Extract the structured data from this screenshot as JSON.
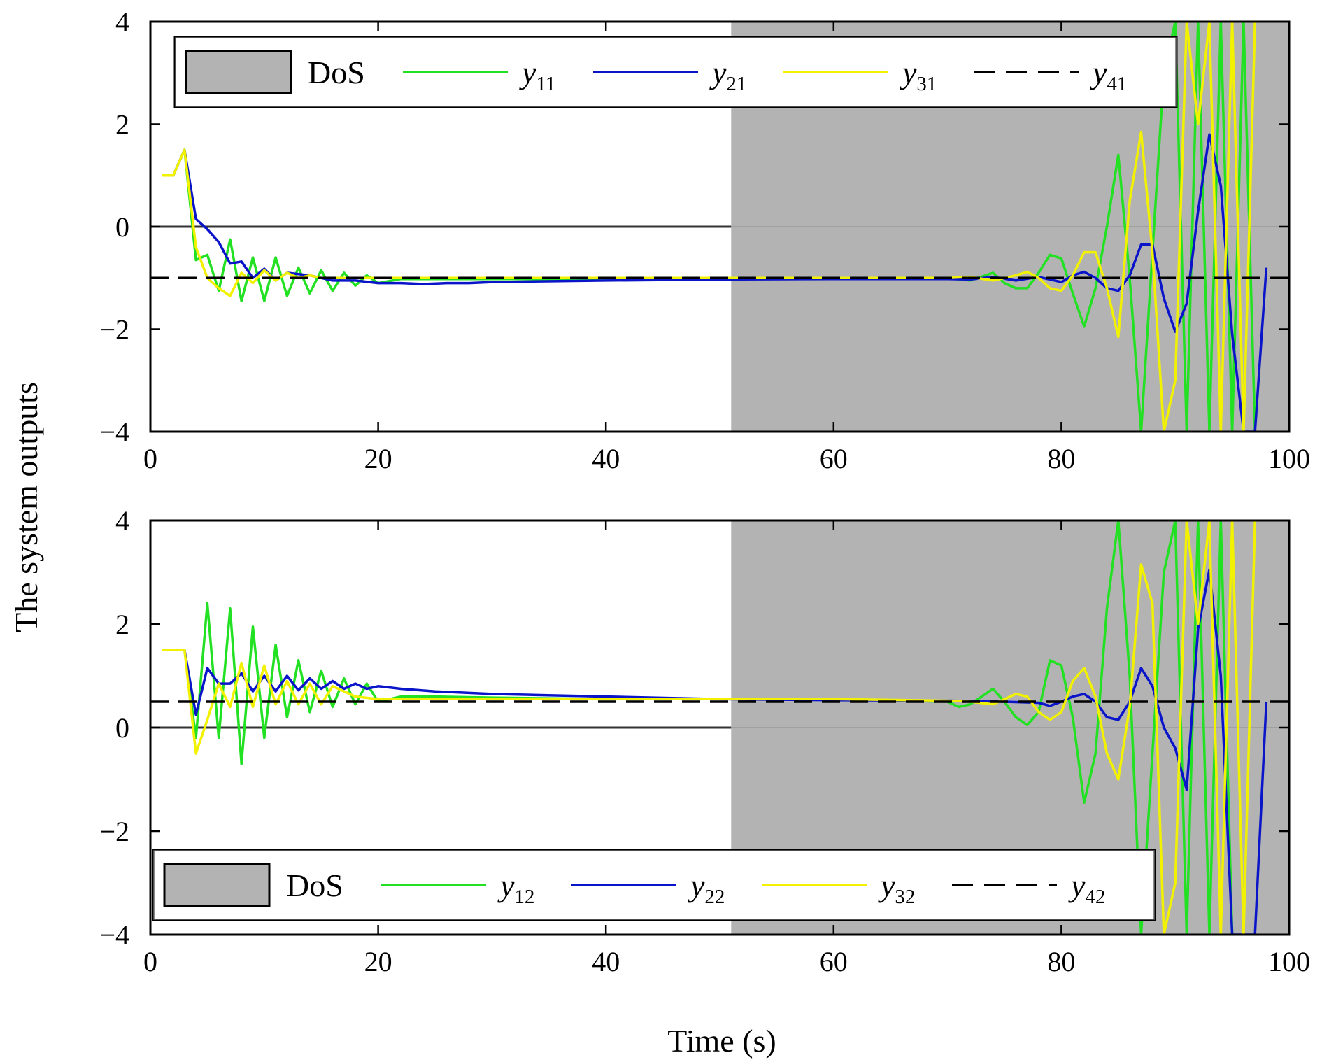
{
  "figure": {
    "xlabel": "Time (s)",
    "ylabel": "The system outputs"
  },
  "chart_data": [
    {
      "type": "line",
      "title": "",
      "xlabel": "Time (s)",
      "ylabel": "The system outputs",
      "xlim": [
        0,
        100
      ],
      "ylim": [
        -4,
        4
      ],
      "xticks": [
        0,
        20,
        40,
        60,
        80,
        100
      ],
      "yticks": [
        -4,
        -2,
        0,
        2,
        4
      ],
      "tick_labels_x": [
        "0",
        "20",
        "40",
        "60",
        "80",
        "100"
      ],
      "tick_labels_y": [
        "−4",
        "−2",
        "0",
        "2",
        "4"
      ],
      "grid": false,
      "legend_position": "top",
      "dos_interval": [
        51,
        100
      ],
      "dos_color": "#b3b3b3",
      "zero_line": 0,
      "legend": [
        {
          "kind": "patch",
          "label": "DoS",
          "color": "#b3b3b3"
        },
        {
          "kind": "line",
          "base": "y",
          "sub": "11",
          "color": "#22e022"
        },
        {
          "kind": "line",
          "base": "y",
          "sub": "21",
          "color": "#0a14c8"
        },
        {
          "kind": "line",
          "base": "y",
          "sub": "31",
          "color": "#f2f200"
        },
        {
          "kind": "dash",
          "base": "y",
          "sub": "41",
          "color": "#000000"
        }
      ],
      "series": [
        {
          "id": "y11",
          "color": "#22e022",
          "x": [
            1,
            2,
            3,
            4,
            5,
            6,
            7,
            8,
            9,
            10,
            11,
            12,
            13,
            14,
            15,
            16,
            17,
            18,
            19,
            20,
            22,
            25,
            30,
            40,
            50,
            60,
            70,
            72,
            74,
            75,
            76,
            77,
            78,
            79,
            80,
            81,
            82,
            83,
            84,
            85,
            86,
            87,
            88,
            89,
            90,
            91,
            92,
            93,
            94,
            95,
            96,
            97
          ],
          "y": [
            1,
            1,
            1.5,
            -0.65,
            -0.55,
            -1.25,
            -0.25,
            -1.45,
            -0.6,
            -1.45,
            -0.6,
            -1.35,
            -0.8,
            -1.3,
            -0.85,
            -1.25,
            -0.9,
            -1.15,
            -0.95,
            -1.1,
            -1.02,
            -1.02,
            -1.02,
            -1.02,
            -1.02,
            -1.02,
            -1,
            -1.05,
            -0.9,
            -1.1,
            -1.2,
            -1.2,
            -0.9,
            -0.55,
            -0.62,
            -1.3,
            -1.95,
            -1.2,
            0,
            1.4,
            -1,
            -4,
            -0.5,
            3,
            4,
            -4,
            4,
            -4,
            4,
            -4,
            4,
            -4
          ]
        },
        {
          "id": "y21",
          "color": "#0a14c8",
          "x": [
            1,
            2,
            3,
            4,
            5,
            6,
            7,
            8,
            9,
            10,
            11,
            12,
            14,
            16,
            18,
            20,
            22,
            24,
            26,
            28,
            30,
            40,
            50,
            60,
            70,
            72,
            74,
            76,
            78,
            80,
            81,
            82,
            83,
            84,
            85,
            86,
            87,
            88,
            89,
            90,
            91,
            92,
            93,
            94,
            95,
            96,
            97,
            98
          ],
          "y": [
            1,
            1,
            1.5,
            0.15,
            -0.05,
            -0.3,
            -0.72,
            -0.68,
            -1,
            -0.82,
            -1.05,
            -0.9,
            -0.95,
            -1.05,
            -1.05,
            -1.1,
            -1.1,
            -1.12,
            -1.1,
            -1.1,
            -1.08,
            -1.05,
            -1.03,
            -1.02,
            -1.02,
            -1.03,
            -0.98,
            -1.05,
            -0.98,
            -1.08,
            -0.95,
            -0.88,
            -1,
            -1.2,
            -1.25,
            -0.95,
            -0.35,
            -0.35,
            -1.4,
            -2.05,
            -1.5,
            0.3,
            1.8,
            0.8,
            -2.1,
            -4,
            -4,
            -0.8
          ]
        },
        {
          "id": "y31",
          "color": "#f2f200",
          "x": [
            1,
            2,
            3,
            4,
            5,
            6,
            7,
            8,
            9,
            10,
            11,
            12,
            13,
            14,
            15,
            16,
            18,
            20,
            22,
            25,
            30,
            40,
            50,
            60,
            70,
            72,
            74,
            75,
            76,
            77,
            78,
            79,
            80,
            81,
            82,
            83,
            84,
            85,
            86,
            87,
            88,
            89,
            90,
            91,
            92,
            93,
            94,
            95,
            96,
            97
          ],
          "y": [
            1,
            1,
            1.5,
            -0.4,
            -1,
            -1.2,
            -1.35,
            -0.9,
            -1.1,
            -0.85,
            -1.05,
            -0.9,
            -1,
            -0.95,
            -1,
            -1,
            -1,
            -1,
            -1,
            -1,
            -1,
            -1,
            -1,
            -1,
            -1,
            -0.98,
            -1.05,
            -1,
            -0.95,
            -0.88,
            -1,
            -1.2,
            -1.25,
            -0.95,
            -0.5,
            -0.5,
            -1.2,
            -2.15,
            0.5,
            1.85,
            -0.5,
            -4,
            -3,
            4,
            2,
            4,
            -4,
            4,
            -4,
            4
          ]
        },
        {
          "id": "y41",
          "color": "#000000",
          "dashed": true,
          "x": [
            0,
            100
          ],
          "y": [
            -1,
            -1
          ]
        }
      ]
    },
    {
      "type": "line",
      "title": "",
      "xlabel": "Time (s)",
      "ylabel": "The system outputs",
      "xlim": [
        0,
        100
      ],
      "ylim": [
        -4,
        4
      ],
      "xticks": [
        0,
        20,
        40,
        60,
        80,
        100
      ],
      "yticks": [
        -4,
        -2,
        0,
        2,
        4
      ],
      "tick_labels_x": [
        "0",
        "20",
        "40",
        "60",
        "80",
        "100"
      ],
      "tick_labels_y": [
        "−4",
        "−2",
        "0",
        "2",
        "4"
      ],
      "grid": false,
      "legend_position": "bottom",
      "dos_interval": [
        51,
        100
      ],
      "dos_color": "#b3b3b3",
      "zero_line": 0,
      "legend": [
        {
          "kind": "patch",
          "label": "DoS",
          "color": "#b3b3b3"
        },
        {
          "kind": "line",
          "base": "y",
          "sub": "12",
          "color": "#22e022"
        },
        {
          "kind": "line",
          "base": "y",
          "sub": "22",
          "color": "#0a14c8"
        },
        {
          "kind": "line",
          "base": "y",
          "sub": "32",
          "color": "#f2f200"
        },
        {
          "kind": "dash",
          "base": "y",
          "sub": "42",
          "color": "#000000"
        }
      ],
      "series": [
        {
          "id": "y12",
          "color": "#22e022",
          "x": [
            1,
            2,
            3,
            4,
            5,
            6,
            7,
            8,
            9,
            10,
            11,
            12,
            13,
            14,
            15,
            16,
            17,
            18,
            19,
            20,
            22,
            25,
            30,
            40,
            50,
            60,
            70,
            71,
            72,
            73,
            74,
            75,
            76,
            77,
            78,
            79,
            80,
            81,
            82,
            83,
            84,
            85,
            86,
            87,
            88,
            89,
            90,
            91,
            92,
            93,
            94,
            95
          ],
          "y": [
            1.5,
            1.5,
            1.5,
            -0.2,
            2.4,
            -0.2,
            2.3,
            -0.7,
            1.95,
            -0.2,
            1.6,
            0.2,
            1.3,
            0.3,
            1.1,
            0.4,
            0.95,
            0.45,
            0.85,
            0.5,
            0.6,
            0.6,
            0.58,
            0.55,
            0.55,
            0.55,
            0.5,
            0.4,
            0.45,
            0.6,
            0.75,
            0.5,
            0.2,
            0.05,
            0.3,
            1.3,
            1.2,
            0.2,
            -1.45,
            -0.5,
            2.3,
            4,
            1,
            -4,
            -0.5,
            3,
            4,
            -4,
            4,
            -4,
            4,
            -4
          ]
        },
        {
          "id": "y22",
          "color": "#0a14c8",
          "x": [
            1,
            2,
            3,
            4,
            5,
            6,
            7,
            8,
            9,
            10,
            11,
            12,
            13,
            14,
            15,
            16,
            17,
            18,
            19,
            20,
            22,
            25,
            30,
            40,
            50,
            60,
            70,
            75,
            78,
            79,
            80,
            81,
            82,
            83,
            84,
            85,
            86,
            87,
            88,
            89,
            90,
            91,
            92,
            93,
            94,
            95,
            96,
            97,
            98
          ],
          "y": [
            1.5,
            1.5,
            1.5,
            0.25,
            1.15,
            0.85,
            0.85,
            1.05,
            0.7,
            1,
            0.7,
            1,
            0.72,
            0.95,
            0.75,
            0.9,
            0.75,
            0.85,
            0.75,
            0.8,
            0.75,
            0.7,
            0.65,
            0.6,
            0.55,
            0.53,
            0.52,
            0.5,
            0.48,
            0.42,
            0.5,
            0.6,
            0.65,
            0.5,
            0.2,
            0.15,
            0.5,
            1.15,
            0.8,
            0,
            -0.4,
            -1.2,
            1.9,
            3.05,
            1,
            -4,
            -4,
            -4,
            0.5
          ]
        },
        {
          "id": "y32",
          "color": "#f2f200",
          "x": [
            1,
            2,
            3,
            4,
            5,
            6,
            7,
            8,
            9,
            10,
            11,
            12,
            13,
            14,
            15,
            16,
            18,
            20,
            22,
            25,
            30,
            40,
            50,
            60,
            70,
            72,
            74,
            75,
            76,
            77,
            78,
            79,
            80,
            81,
            82,
            83,
            84,
            85,
            86,
            87,
            88,
            89,
            90,
            91,
            92,
            93,
            94,
            95,
            96,
            97
          ],
          "y": [
            1.5,
            1.5,
            1.5,
            -0.5,
            0.15,
            0.85,
            0.4,
            1.25,
            0.4,
            1.2,
            0.45,
            0.9,
            0.45,
            0.85,
            0.45,
            0.8,
            0.6,
            0.55,
            0.55,
            0.55,
            0.55,
            0.55,
            0.55,
            0.55,
            0.52,
            0.5,
            0.45,
            0.55,
            0.65,
            0.6,
            0.3,
            0.15,
            0.3,
            0.9,
            1.15,
            0.6,
            -0.5,
            -1,
            0.4,
            3.15,
            2.4,
            -4,
            -3,
            4,
            2,
            4,
            -4,
            4,
            -4,
            4
          ]
        },
        {
          "id": "y42",
          "color": "#000000",
          "dashed": true,
          "x": [
            0,
            100
          ],
          "y": [
            0.5,
            0.5
          ]
        }
      ]
    }
  ]
}
